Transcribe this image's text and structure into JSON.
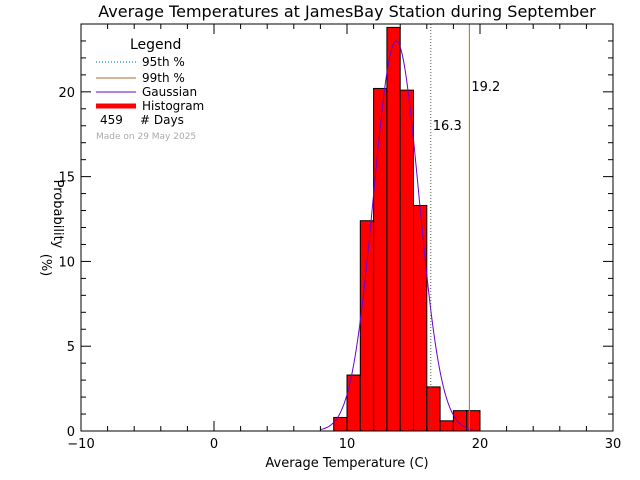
{
  "chart_data": {
    "type": "bar",
    "title": "Average Temperatures at JamesBay Station during September",
    "xlabel": "Average Temperature (C)",
    "ylabel_line1": "Probability",
    "ylabel_line2": "(%)",
    "xlim": [
      -10,
      30
    ],
    "ylim": [
      0,
      24
    ],
    "xticks": [
      -10,
      0,
      10,
      20,
      30
    ],
    "yticks": [
      0,
      5,
      10,
      15,
      20
    ],
    "bin_width": 1,
    "histogram": {
      "name": "Histogram",
      "color": "#ff0000",
      "bins": [
        {
          "x0": 9,
          "x1": 10,
          "value": 0.8
        },
        {
          "x0": 10,
          "x1": 11,
          "value": 3.3
        },
        {
          "x0": 11,
          "x1": 12,
          "value": 12.4
        },
        {
          "x0": 12,
          "x1": 13,
          "value": 20.2
        },
        {
          "x0": 13,
          "x1": 14,
          "value": 23.8
        },
        {
          "x0": 14,
          "x1": 15,
          "value": 20.1
        },
        {
          "x0": 15,
          "x1": 16,
          "value": 13.3
        },
        {
          "x0": 16,
          "x1": 17,
          "value": 2.6
        },
        {
          "x0": 17,
          "x1": 18,
          "value": 0.6
        },
        {
          "x0": 18,
          "x1": 19,
          "value": 1.2
        },
        {
          "x0": 19,
          "x1": 20,
          "value": 1.2
        }
      ]
    },
    "gaussian": {
      "name": "Gaussian",
      "color": "#6a00cc",
      "mean": 13.7,
      "sigma": 1.7,
      "peak": 23.0,
      "x_range": [
        8,
        19.5
      ]
    },
    "percentile_95": {
      "label": "95th %",
      "value": 16.3,
      "text": "16.3",
      "color": "#1a88c8"
    },
    "percentile_99": {
      "label": "99th %",
      "value": 19.2,
      "text": "19.2",
      "color": "#b06a28"
    },
    "legend": {
      "title": "Legend",
      "p95": "95th %",
      "p99": "99th %",
      "gaussian": "Gaussian",
      "histogram": "Histogram",
      "days_count": "459",
      "days_label": "# Days",
      "made_on": "Made on 29 May 2025"
    }
  }
}
